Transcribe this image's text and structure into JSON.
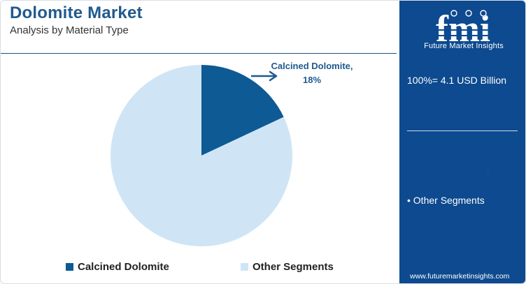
{
  "header": {
    "title": "Dolomite Market",
    "subtitle": "Analysis by Material Type"
  },
  "chart_data": {
    "type": "pie",
    "categories": [
      "Calcined Dolomite",
      "Other Segments"
    ],
    "values": [
      18,
      82
    ],
    "unit": "%",
    "colors": [
      "#0d5a95",
      "#cfe5f5"
    ],
    "slice_label": {
      "name": "Calcined Dolomite,",
      "value": "18%"
    },
    "legend": {
      "placement": "bottom",
      "items": [
        {
          "label": "Calcined Dolomite",
          "color": "#0d5a95"
        },
        {
          "label": "Other Segments",
          "color": "#cfe5f5"
        }
      ]
    }
  },
  "panel": {
    "logo_letters": "fmi",
    "logo_text": "Future Market Insights",
    "total": "100%= 4.1 USD Billion",
    "segment_item": "• Other Segments",
    "url": "www.futuremarketinsights.com",
    "background_color": "#0d4a8f"
  }
}
